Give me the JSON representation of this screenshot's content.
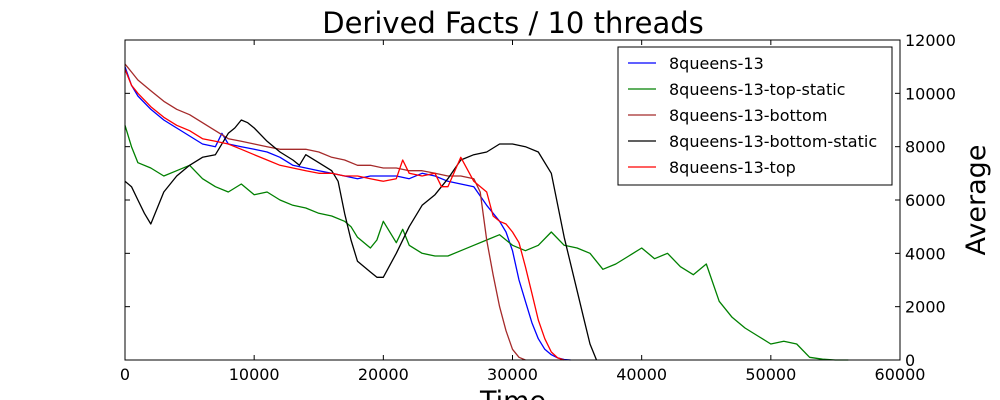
{
  "chart_data": {
    "type": "line",
    "title": "Derived Facts / 10 threads",
    "xlabel": "Time",
    "ylabel": "Average",
    "xlim": [
      0,
      60000
    ],
    "ylim": [
      0,
      12000
    ],
    "xticks": [
      0,
      10000,
      20000,
      30000,
      40000,
      50000,
      60000
    ],
    "yticks": [
      0,
      2000,
      4000,
      6000,
      8000,
      10000,
      12000
    ],
    "xtick_labels": [
      "0",
      "10000",
      "20000",
      "30000",
      "40000",
      "50000",
      "60000"
    ],
    "ytick_labels": [
      "0",
      "2000",
      "4000",
      "6000",
      "8000",
      "10000",
      "12000"
    ],
    "y_axis_side": "right",
    "grid": false,
    "legend_position": "top-right",
    "series": [
      {
        "name": "8queens-13",
        "color": "#0000ff",
        "x": [
          0,
          500,
          1000,
          2000,
          3000,
          4000,
          5000,
          6000,
          7000,
          7500,
          8000,
          9000,
          10000,
          11000,
          12000,
          13000,
          14000,
          15000,
          16000,
          17000,
          18000,
          19000,
          20000,
          21000,
          22000,
          23000,
          24000,
          25000,
          26000,
          27000,
          28000,
          29000,
          29500,
          30000,
          30500,
          31000,
          31500,
          32000,
          32500,
          33000,
          33500,
          34000,
          34500
        ],
        "y": [
          11000,
          10300,
          9900,
          9400,
          9000,
          8700,
          8400,
          8100,
          8000,
          8500,
          8100,
          8000,
          7900,
          7800,
          7600,
          7300,
          7200,
          7100,
          7000,
          6900,
          6800,
          6900,
          6900,
          6900,
          6800,
          7000,
          6900,
          6700,
          6600,
          6500,
          5800,
          5200,
          4800,
          4100,
          3000,
          2200,
          1400,
          800,
          400,
          200,
          80,
          20,
          0
        ]
      },
      {
        "name": "8queens-13-top-static",
        "color": "#008000",
        "x": [
          0,
          500,
          1000,
          2000,
          3000,
          4000,
          5000,
          6000,
          7000,
          8000,
          9000,
          10000,
          11000,
          12000,
          13000,
          14000,
          15000,
          16000,
          17000,
          17500,
          18000,
          19000,
          19500,
          20000,
          21000,
          21500,
          22000,
          23000,
          24000,
          25000,
          26000,
          27000,
          28000,
          29000,
          30000,
          31000,
          32000,
          33000,
          34000,
          35000,
          36000,
          37000,
          38000,
          39000,
          40000,
          41000,
          42000,
          43000,
          44000,
          45000,
          46000,
          47000,
          48000,
          49000,
          50000,
          51000,
          52000,
          53000,
          54000,
          55000,
          56000
        ],
        "y": [
          8800,
          8000,
          7400,
          7200,
          6900,
          7100,
          7300,
          6800,
          6500,
          6300,
          6600,
          6200,
          6300,
          6000,
          5800,
          5700,
          5500,
          5400,
          5200,
          5000,
          4600,
          4200,
          4500,
          5200,
          4400,
          4900,
          4300,
          4000,
          3900,
          3900,
          4100,
          4300,
          4500,
          4700,
          4300,
          4100,
          4300,
          4800,
          4300,
          4200,
          4000,
          3400,
          3600,
          3900,
          4200,
          3800,
          4000,
          3500,
          3200,
          3600,
          2200,
          1600,
          1200,
          900,
          600,
          700,
          600,
          100,
          30,
          0,
          0
        ]
      },
      {
        "name": "8queens-13-bottom",
        "color": "#a52a2a",
        "x": [
          0,
          500,
          1000,
          2000,
          3000,
          4000,
          5000,
          6000,
          7000,
          8000,
          9000,
          10000,
          11000,
          12000,
          13000,
          14000,
          15000,
          16000,
          17000,
          18000,
          19000,
          20000,
          21000,
          22000,
          23000,
          24000,
          25000,
          26000,
          27000,
          27500,
          28000,
          28500,
          29000,
          29500,
          30000,
          30500,
          31000
        ],
        "y": [
          11100,
          10800,
          10500,
          10100,
          9700,
          9400,
          9200,
          8900,
          8600,
          8300,
          8200,
          8100,
          8000,
          7900,
          7900,
          7900,
          7800,
          7600,
          7500,
          7300,
          7300,
          7200,
          7200,
          7100,
          7100,
          7000,
          6900,
          6900,
          6800,
          6300,
          4500,
          3200,
          2000,
          1100,
          400,
          100,
          0
        ]
      },
      {
        "name": "8queens-13-bottom-static",
        "color": "#000000",
        "x": [
          0,
          500,
          1000,
          1500,
          2000,
          3000,
          4000,
          5000,
          6000,
          7000,
          8000,
          8500,
          9000,
          9500,
          10000,
          11000,
          12000,
          13000,
          13500,
          14000,
          15000,
          16000,
          16500,
          17000,
          17500,
          18000,
          19000,
          19500,
          20000,
          21000,
          22000,
          23000,
          24000,
          25000,
          26000,
          27000,
          28000,
          29000,
          30000,
          31000,
          32000,
          33000,
          34000,
          35000,
          35500,
          36000,
          36500
        ],
        "y": [
          6700,
          6500,
          6000,
          5500,
          5100,
          6300,
          6900,
          7300,
          7600,
          7700,
          8500,
          8700,
          9000,
          8900,
          8700,
          8200,
          7800,
          7500,
          7300,
          7700,
          7400,
          7100,
          6700,
          5500,
          4500,
          3700,
          3300,
          3100,
          3100,
          4000,
          5000,
          5800,
          6200,
          6800,
          7500,
          7700,
          7800,
          8100,
          8100,
          8000,
          7800,
          7000,
          4600,
          2600,
          1600,
          600,
          0
        ]
      },
      {
        "name": "8queens-13-top",
        "color": "#ff0000",
        "x": [
          0,
          500,
          1000,
          2000,
          3000,
          4000,
          5000,
          6000,
          7000,
          8000,
          9000,
          10000,
          11000,
          12000,
          13000,
          14000,
          15000,
          16000,
          17000,
          18000,
          19000,
          20000,
          21000,
          21500,
          22000,
          23000,
          24000,
          24500,
          25000,
          26000,
          27000,
          28000,
          28500,
          29000,
          29500,
          30000,
          30500,
          31000,
          31500,
          32000,
          32500,
          33000,
          33500,
          34000
        ],
        "y": [
          10900,
          10300,
          10000,
          9500,
          9100,
          8800,
          8600,
          8300,
          8200,
          8100,
          7900,
          7700,
          7500,
          7300,
          7200,
          7100,
          7000,
          7000,
          6900,
          6900,
          6800,
          6700,
          6800,
          7500,
          7000,
          6900,
          7000,
          6500,
          6500,
          7600,
          6700,
          6300,
          5400,
          5200,
          5100,
          4800,
          4400,
          3500,
          2500,
          1500,
          800,
          300,
          80,
          0
        ]
      }
    ]
  }
}
